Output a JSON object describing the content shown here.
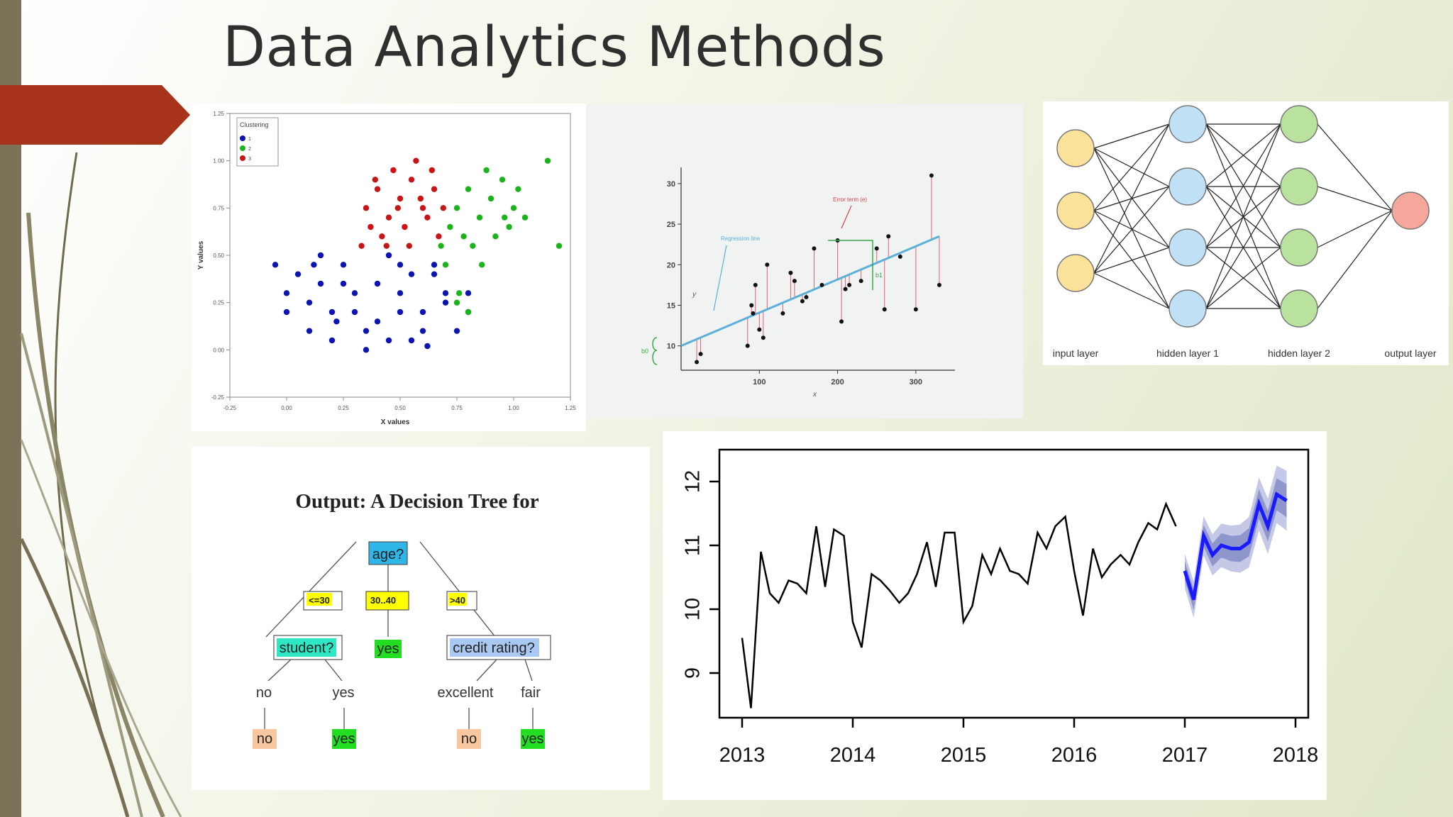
{
  "slide": {
    "title": "Data Analytics Methods",
    "accent_color": "#a8331b",
    "sidebar_color": "#7b7258"
  },
  "clustering": {
    "legend_title": "Clustering",
    "legend_items": [
      "1",
      "2",
      "3"
    ],
    "colors": [
      "#0a14b4",
      "#19b419",
      "#c81414"
    ],
    "xlabel": "X values",
    "ylabel": "Y values",
    "x_ticks": [
      "-0.25",
      "0.00",
      "0.25",
      "0.50",
      "0.75",
      "1.00",
      "1.25"
    ],
    "y_ticks": [
      "1.25",
      "1.00",
      "0.75",
      "0.50",
      "0.25",
      "0.00",
      "-0.25"
    ]
  },
  "regression": {
    "regression_label": "Regression line",
    "error_label": "Error term (e)",
    "b0_label": "b0",
    "b1_label": "b1",
    "xlabel": "x",
    "ylabel": "y",
    "x_ticks": [
      "100",
      "200",
      "300"
    ],
    "y_ticks": [
      "30",
      "25",
      "20",
      "15",
      "10"
    ]
  },
  "neural_net": {
    "layers": [
      "input layer",
      "hidden layer 1",
      "hidden layer 2",
      "output layer"
    ],
    "colors": {
      "input": "#fbe29a",
      "hidden1": "#bfe0f5",
      "hidden2": "#b9e29f",
      "output": "#f6a79c"
    }
  },
  "decision_tree": {
    "title": "Output: A Decision Tree for",
    "root": "age?",
    "branches": [
      "<=30",
      "30..40",
      ">40"
    ],
    "student": "student?",
    "middle_leaf": "yes",
    "credit": "credit rating?",
    "student_edges": [
      "no",
      "yes"
    ],
    "credit_edges": [
      "excellent",
      "fair"
    ],
    "leaves": [
      "no",
      "yes",
      "no",
      "yes"
    ]
  },
  "forecast": {
    "x_ticks": [
      "2013",
      "2014",
      "2015",
      "2016",
      "2017",
      "2018"
    ],
    "y_ticks": [
      "12",
      "11",
      "10",
      "9"
    ]
  },
  "chart_data": [
    {
      "type": "scatter",
      "title": "",
      "legend_title": "Clustering",
      "xlabel": "X values",
      "ylabel": "Y values",
      "xlim": [
        -0.25,
        1.25
      ],
      "ylim": [
        -0.25,
        1.25
      ],
      "series": [
        {
          "name": "1",
          "color": "#0a14b4",
          "x": [
            -0.05,
            0.0,
            0.05,
            0.1,
            0.15,
            0.2,
            0.25,
            0.3,
            0.35,
            0.4,
            0.45,
            0.5,
            0.55,
            0.6,
            0.65,
            0.7,
            0.75,
            0.8,
            0.1,
            0.2,
            0.3,
            0.5,
            0.6,
            0.7,
            0.0,
            0.15,
            0.25,
            0.4,
            0.55,
            0.65,
            0.8,
            0.35,
            0.45,
            0.22,
            0.62,
            0.12,
            0.5
          ],
          "y": [
            0.45,
            0.3,
            0.4,
            0.25,
            0.35,
            0.2,
            0.45,
            0.3,
            0.1,
            0.35,
            0.05,
            0.3,
            0.4,
            0.2,
            0.45,
            0.25,
            0.1,
            0.3,
            0.1,
            0.05,
            0.2,
            0.2,
            0.1,
            0.3,
            0.2,
            0.5,
            0.35,
            0.15,
            0.05,
            0.4,
            0.2,
            0.0,
            0.5,
            0.15,
            0.02,
            0.45,
            0.45
          ]
        },
        {
          "name": "2",
          "color": "#19b419",
          "x": [
            0.68,
            0.72,
            0.75,
            0.8,
            0.85,
            0.9,
            0.95,
            1.0,
            1.05,
            0.78,
            0.88,
            0.98,
            0.7,
            0.82,
            0.92,
            1.02,
            1.15,
            1.2,
            0.76,
            0.86,
            0.96,
            0.75,
            0.8
          ],
          "y": [
            0.55,
            0.65,
            0.75,
            0.85,
            0.7,
            0.8,
            0.9,
            0.75,
            0.7,
            0.6,
            0.95,
            0.65,
            0.45,
            0.55,
            0.6,
            0.85,
            1.0,
            0.55,
            0.3,
            0.45,
            0.7,
            0.25,
            0.2
          ]
        },
        {
          "name": "3",
          "color": "#c81414",
          "x": [
            0.35,
            0.4,
            0.45,
            0.5,
            0.55,
            0.6,
            0.65,
            0.42,
            0.52,
            0.62,
            0.47,
            0.57,
            0.37,
            0.67,
            0.44,
            0.54,
            0.64,
            0.49,
            0.59,
            0.39,
            0.33,
            0.69
          ],
          "y": [
            0.75,
            0.85,
            0.7,
            0.8,
            0.9,
            0.75,
            0.85,
            0.6,
            0.65,
            0.7,
            0.95,
            1.0,
            0.65,
            0.6,
            0.55,
            0.55,
            0.95,
            0.75,
            0.8,
            0.9,
            0.55,
            0.75
          ]
        }
      ]
    },
    {
      "type": "scatter",
      "title": "",
      "xlabel": "x",
      "ylabel": "y",
      "xlim": [
        0,
        350
      ],
      "ylim": [
        7,
        32
      ],
      "points": {
        "x": [
          20,
          25,
          85,
          90,
          92,
          95,
          100,
          105,
          110,
          130,
          140,
          145,
          155,
          160,
          170,
          180,
          200,
          205,
          210,
          215,
          230,
          250,
          260,
          265,
          280,
          300,
          320,
          330
        ],
        "y": [
          8,
          9,
          10,
          15,
          14,
          17.5,
          12,
          11,
          20,
          14,
          19,
          18,
          15.5,
          16,
          22,
          17.5,
          23,
          13,
          17,
          17.5,
          18,
          22,
          14.5,
          23.5,
          21,
          14.5,
          31,
          17.5
        ]
      },
      "regression_line": {
        "x": [
          0,
          330
        ],
        "y": [
          10,
          23.5
        ]
      }
    },
    {
      "type": "line",
      "title": "",
      "xlabel": "",
      "ylabel": "",
      "xlim": [
        2013,
        2018
      ],
      "ylim": [
        8.3,
        12.5
      ],
      "series": [
        {
          "name": "",
          "color": "#000000",
          "x": [
            2013.0,
            2013.08,
            2013.17,
            2013.25,
            2013.33,
            2013.42,
            2013.5,
            2013.58,
            2013.67,
            2013.75,
            2013.83,
            2013.92,
            2014.0,
            2014.08,
            2014.17,
            2014.25,
            2014.33,
            2014.42,
            2014.5,
            2014.58,
            2014.67,
            2014.75,
            2014.83,
            2014.92,
            2015.0,
            2015.08,
            2015.17,
            2015.25,
            2015.33,
            2015.42,
            2015.5,
            2015.58,
            2015.67,
            2015.75,
            2015.83,
            2015.92,
            2016.0,
            2016.08,
            2016.17,
            2016.25,
            2016.33,
            2016.42,
            2016.5,
            2016.58,
            2016.67,
            2016.75,
            2016.83,
            2016.92
          ],
          "values": [
            9.55,
            8.45,
            10.9,
            10.25,
            10.1,
            10.45,
            10.4,
            10.25,
            11.3,
            10.35,
            11.25,
            11.15,
            9.8,
            9.4,
            10.55,
            10.45,
            10.3,
            10.1,
            10.25,
            10.55,
            11.05,
            10.35,
            11.2,
            11.2,
            9.8,
            10.05,
            10.85,
            10.55,
            10.95,
            10.6,
            10.55,
            10.4,
            11.2,
            10.95,
            11.3,
            11.45,
            10.6,
            9.9,
            10.95,
            10.5,
            10.7,
            10.85,
            10.7,
            11.05,
            11.35,
            11.25,
            11.65,
            11.3
          ]
        },
        {
          "name": "",
          "color": "#1a1aff",
          "x": [
            2017.0,
            2017.08,
            2017.17,
            2017.25,
            2017.33,
            2017.42,
            2017.5,
            2017.58,
            2017.67,
            2017.75,
            2017.83,
            2017.92
          ],
          "values": [
            10.6,
            10.15,
            11.15,
            10.85,
            11.0,
            10.95,
            10.95,
            11.05,
            11.65,
            11.3,
            11.8,
            11.7
          ]
        }
      ]
    }
  ]
}
